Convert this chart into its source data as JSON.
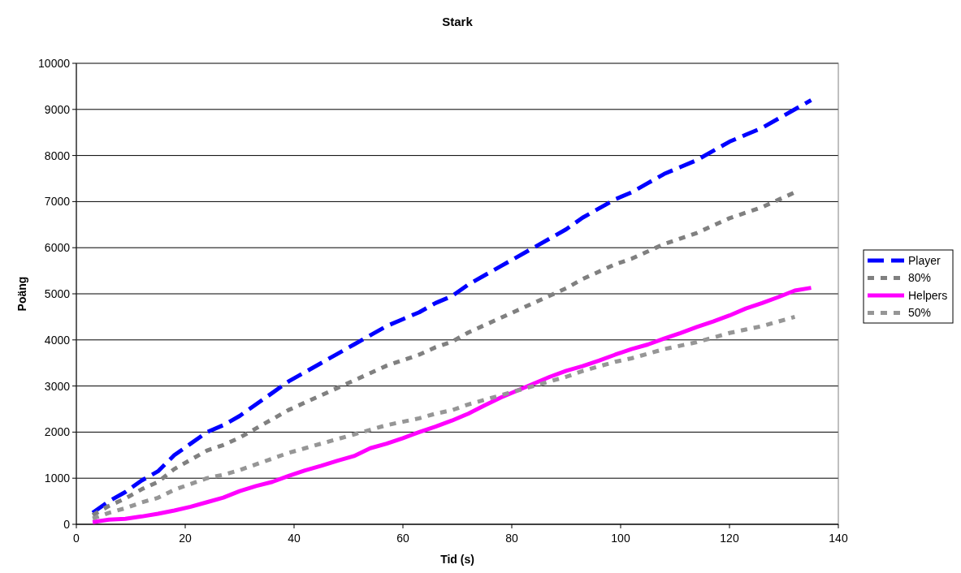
{
  "chart_data": {
    "type": "line",
    "title": "Stark",
    "xlabel": "Tid (s)",
    "ylabel": "Poäng",
    "xlim": [
      0,
      140
    ],
    "xticks": [
      0,
      20,
      40,
      60,
      80,
      100,
      120,
      140
    ],
    "ylim": [
      0,
      10000
    ],
    "yticks": [
      0,
      1000,
      2000,
      3000,
      4000,
      5000,
      6000,
      7000,
      8000,
      9000,
      10000
    ],
    "grid": "y",
    "legend": "right",
    "marker": "none",
    "series": [
      {
        "name": "Player",
        "color": "#0000ff",
        "line_style": "dashed",
        "x": [
          3,
          6,
          9,
          12,
          15,
          18,
          21,
          24,
          27,
          30,
          33,
          36,
          39,
          42,
          45,
          48,
          51,
          54,
          57,
          60,
          63,
          66,
          69,
          72,
          75,
          78,
          81,
          84,
          87,
          90,
          93,
          96,
          99,
          102,
          105,
          108,
          111,
          114,
          117,
          120,
          123,
          126,
          129,
          132,
          135
        ],
        "values": [
          250,
          500,
          700,
          950,
          1150,
          1500,
          1750,
          2000,
          2150,
          2350,
          2600,
          2850,
          3100,
          3300,
          3500,
          3700,
          3900,
          4100,
          4300,
          4450,
          4600,
          4800,
          4950,
          5200,
          5400,
          5600,
          5800,
          6000,
          6200,
          6400,
          6650,
          6850,
          7050,
          7200,
          7400,
          7600,
          7750,
          7900,
          8100,
          8300,
          8450,
          8600,
          8800,
          9000,
          9200
        ]
      },
      {
        "name": "80%",
        "color": "#808080",
        "line_style": "dotted",
        "x": [
          3,
          6,
          9,
          12,
          15,
          18,
          21,
          24,
          27,
          30,
          33,
          36,
          39,
          42,
          45,
          48,
          51,
          54,
          57,
          60,
          63,
          66,
          69,
          72,
          75,
          78,
          81,
          84,
          87,
          90,
          93,
          96,
          99,
          102,
          105,
          108,
          111,
          114,
          117,
          120,
          123,
          126,
          129,
          132
        ],
        "values": [
          200,
          400,
          560,
          760,
          920,
          1200,
          1400,
          1600,
          1720,
          1880,
          2080,
          2280,
          2480,
          2640,
          2800,
          2960,
          3120,
          3280,
          3440,
          3560,
          3680,
          3840,
          3960,
          4160,
          4320,
          4480,
          4640,
          4800,
          4960,
          5120,
          5320,
          5480,
          5640,
          5760,
          5920,
          6080,
          6200,
          6320,
          6480,
          6640,
          6760,
          6880,
          7040,
          7200
        ]
      },
      {
        "name": "Helpers",
        "color": "#ff00ff",
        "line_style": "solid",
        "x": [
          3,
          6,
          9,
          12,
          15,
          18,
          21,
          24,
          27,
          30,
          33,
          36,
          39,
          42,
          45,
          48,
          51,
          54,
          57,
          60,
          63,
          66,
          69,
          72,
          75,
          78,
          81,
          84,
          87,
          90,
          93,
          96,
          99,
          102,
          105,
          108,
          111,
          114,
          117,
          120,
          123,
          126,
          129,
          132,
          135
        ],
        "values": [
          50,
          100,
          120,
          170,
          230,
          300,
          380,
          480,
          580,
          720,
          830,
          920,
          1050,
          1170,
          1270,
          1380,
          1480,
          1650,
          1750,
          1870,
          2000,
          2120,
          2250,
          2400,
          2580,
          2750,
          2900,
          3050,
          3200,
          3330,
          3430,
          3550,
          3680,
          3800,
          3900,
          4030,
          4150,
          4280,
          4400,
          4530,
          4680,
          4800,
          4930,
          5070,
          5130
        ]
      },
      {
        "name": "50%",
        "color": "#969696",
        "line_style": "dotted",
        "x": [
          3,
          6,
          9,
          12,
          15,
          18,
          21,
          24,
          27,
          30,
          33,
          36,
          39,
          42,
          45,
          48,
          51,
          54,
          57,
          60,
          63,
          66,
          69,
          72,
          75,
          78,
          81,
          84,
          87,
          90,
          93,
          96,
          99,
          102,
          105,
          108,
          111,
          114,
          117,
          120,
          123,
          126,
          129,
          132
        ],
        "values": [
          125,
          250,
          350,
          475,
          575,
          750,
          875,
          1000,
          1075,
          1175,
          1300,
          1425,
          1550,
          1650,
          1750,
          1850,
          1950,
          2050,
          2150,
          2225,
          2300,
          2400,
          2475,
          2600,
          2700,
          2800,
          2900,
          3000,
          3100,
          3200,
          3325,
          3425,
          3525,
          3600,
          3700,
          3800,
          3875,
          3950,
          4050,
          4150,
          4225,
          4300,
          4400,
          4500
        ]
      }
    ]
  }
}
